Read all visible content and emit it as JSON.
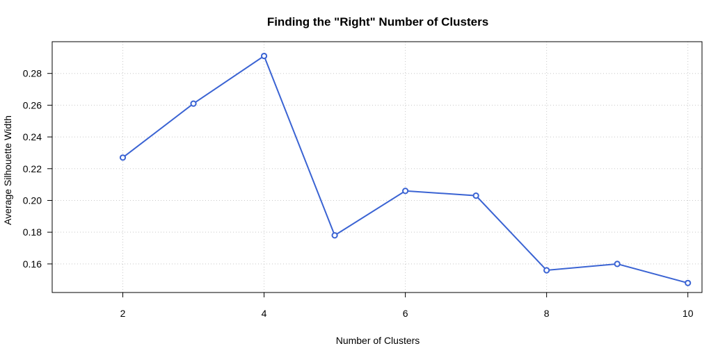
{
  "chart_data": {
    "type": "line",
    "title": "Finding the \"Right\" Number of Clusters",
    "xlabel": "Number of Clusters",
    "ylabel": "Average Silhouette Width",
    "xlim": [
      1,
      10.2
    ],
    "ylim": [
      0.142,
      0.3
    ],
    "x_ticks": [
      2,
      4,
      6,
      8,
      10
    ],
    "y_ticks": [
      0.16,
      0.18,
      0.2,
      0.22,
      0.24,
      0.26,
      0.28
    ],
    "y_tick_labels": [
      "0.16",
      "0.18",
      "0.20",
      "0.22",
      "0.24",
      "0.26",
      "0.28"
    ],
    "grid": true,
    "legend": "none",
    "line_color": "#3A63D3",
    "series": [
      {
        "x": [
          2,
          3,
          4,
          5,
          6,
          7,
          8,
          9,
          10
        ],
        "values": [
          0.227,
          0.261,
          0.291,
          0.178,
          0.206,
          0.203,
          0.156,
          0.16,
          0.148
        ]
      }
    ]
  }
}
